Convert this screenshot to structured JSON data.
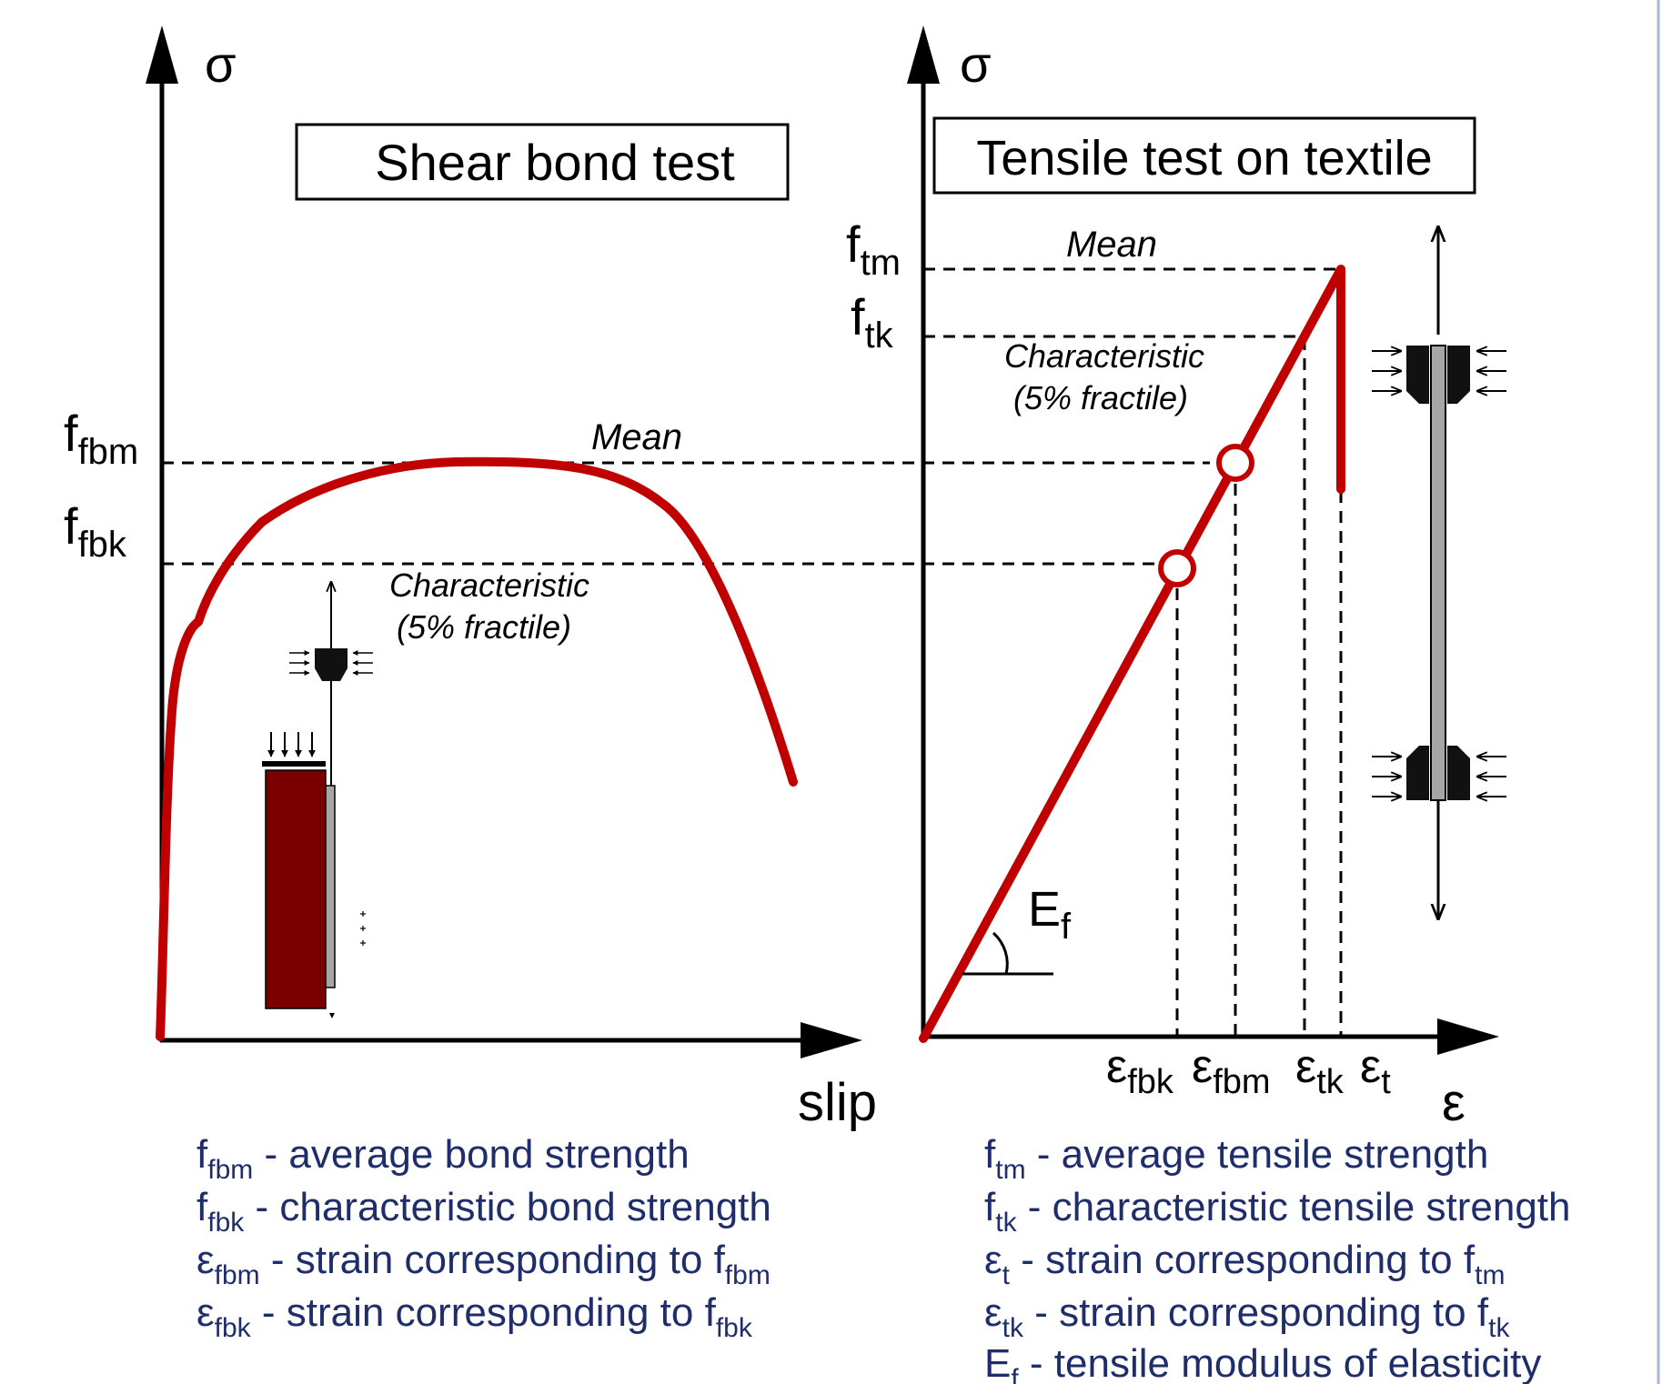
{
  "left_chart": {
    "y_axis": "σ",
    "x_axis": "slip",
    "title": "Shear bond test",
    "ffbm": {
      "base": "f",
      "sub": "fbm"
    },
    "ffbk": {
      "base": "f",
      "sub": "fbk"
    },
    "mean_label": "Mean",
    "char_label_1": "Characteristic",
    "char_label_2": "(5% fractile)"
  },
  "right_chart": {
    "y_axis": "σ",
    "x_axis": "ε",
    "title": "Tensile test on textile",
    "ftm": {
      "base": "f",
      "sub": "tm"
    },
    "ftk": {
      "base": "f",
      "sub": "tk"
    },
    "mean_label": "Mean",
    "char_label_1": "Characteristic",
    "char_label_2": "(5% fractile)",
    "modulus": {
      "base": "E",
      "sub": "f"
    },
    "x_ticks": [
      {
        "base": "ε",
        "sub": "fbk"
      },
      {
        "base": "ε",
        "sub": "fbm"
      },
      {
        "base": "ε",
        "sub": "tk"
      },
      {
        "base": "ε",
        "sub": "t"
      }
    ]
  },
  "legend_left": [
    {
      "sym": "f",
      "sub": "fbm",
      "text": " - average bond strength",
      "ref": "",
      "ref_sub": ""
    },
    {
      "sym": "f",
      "sub": "fbk",
      "text": " - characteristic bond strength",
      "ref": "",
      "ref_sub": ""
    },
    {
      "sym": "ε",
      "sub": "fbm",
      "text": " - strain corresponding to ",
      "ref": "f",
      "ref_sub": "fbm"
    },
    {
      "sym": "ε",
      "sub": "fbk",
      "text": " - strain corresponding to ",
      "ref": "f",
      "ref_sub": "fbk"
    }
  ],
  "legend_right": [
    {
      "sym": "f",
      "sub": "tm",
      "text": " - average tensile strength",
      "ref": "",
      "ref_sub": ""
    },
    {
      "sym": "f",
      "sub": "tk",
      "text": " - characteristic tensile strength",
      "ref": "",
      "ref_sub": ""
    },
    {
      "sym": "ε",
      "sub": "t",
      "text": " - strain corresponding to ",
      "ref": "f",
      "ref_sub": "tm"
    },
    {
      "sym": "ε",
      "sub": "tk",
      "text": " - strain corresponding to ",
      "ref": "f",
      "ref_sub": "tk"
    },
    {
      "sym": "E",
      "sub": "f",
      "text": " - tensile modulus of elasticity",
      "ref": "",
      "ref_sub": ""
    }
  ],
  "colors": {
    "curve": "#c00000",
    "legend_text": "#1f2d6b",
    "specimen": "#7a0000",
    "textile": "#a6a6a6",
    "frame": "#aab8d8"
  }
}
